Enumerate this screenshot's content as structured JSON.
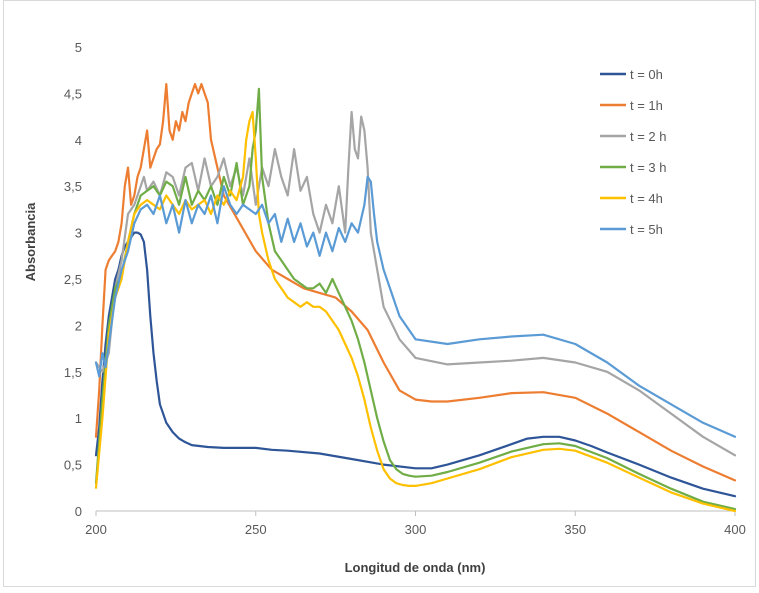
{
  "chart_data": {
    "type": "line",
    "title": "",
    "xlabel": "Longitud de onda (nm)",
    "ylabel": "Absorbancia",
    "xlim": [
      200,
      400
    ],
    "ylim": [
      0,
      5
    ],
    "x_ticks": [
      200,
      250,
      300,
      350,
      400
    ],
    "x_tick_labels": [
      "200",
      "250",
      "300",
      "350",
      "400"
    ],
    "y_ticks": [
      0,
      0.5,
      1,
      1.5,
      2,
      2.5,
      3,
      3.5,
      4,
      4.5,
      5
    ],
    "y_tick_labels": [
      "0",
      "0,5",
      "1",
      "1,5",
      "2",
      "2,5",
      "3",
      "3,5",
      "4",
      "4,5",
      "5"
    ],
    "grid": false,
    "legend_position": "right",
    "series": [
      {
        "name": "t = 0h",
        "color": "#2e5597",
        "x": [
          200,
          201,
          202,
          203,
          204,
          205,
          206,
          207,
          208,
          209,
          210,
          211,
          212,
          213,
          214,
          215,
          216,
          217,
          218,
          219,
          220,
          222,
          224,
          226,
          228,
          230,
          235,
          240,
          245,
          250,
          255,
          260,
          270,
          280,
          290,
          300,
          305,
          310,
          320,
          330,
          335,
          340,
          345,
          350,
          355,
          360,
          370,
          380,
          390,
          400
        ],
        "y": [
          0.6,
          0.9,
          1.4,
          1.8,
          2.1,
          2.3,
          2.5,
          2.6,
          2.75,
          2.85,
          2.9,
          2.95,
          3.0,
          3.0,
          2.98,
          2.9,
          2.6,
          2.1,
          1.7,
          1.4,
          1.15,
          0.95,
          0.85,
          0.78,
          0.74,
          0.71,
          0.69,
          0.68,
          0.68,
          0.68,
          0.66,
          0.65,
          0.62,
          0.56,
          0.5,
          0.46,
          0.46,
          0.5,
          0.6,
          0.72,
          0.78,
          0.8,
          0.8,
          0.76,
          0.7,
          0.63,
          0.5,
          0.36,
          0.24,
          0.16
        ]
      },
      {
        "name": "t = 1h",
        "color": "#ed7d31",
        "x": [
          200,
          201,
          202,
          203,
          204,
          205,
          206,
          207,
          208,
          209,
          210,
          211,
          212,
          213,
          214,
          215,
          216,
          217,
          218,
          219,
          220,
          221,
          222,
          223,
          224,
          225,
          226,
          227,
          228,
          229,
          230,
          231,
          232,
          233,
          234,
          235,
          236,
          240,
          245,
          250,
          255,
          260,
          265,
          270,
          275,
          280,
          285,
          290,
          295,
          300,
          305,
          310,
          320,
          330,
          340,
          350,
          360,
          370,
          380,
          390,
          400
        ],
        "y": [
          0.8,
          1.3,
          2.0,
          2.6,
          2.7,
          2.75,
          2.8,
          2.9,
          3.1,
          3.5,
          3.7,
          3.3,
          3.4,
          3.6,
          3.7,
          3.9,
          4.1,
          3.7,
          3.8,
          3.9,
          3.95,
          4.2,
          4.6,
          4.1,
          4.0,
          4.2,
          4.1,
          4.3,
          4.2,
          4.4,
          4.5,
          4.6,
          4.5,
          4.6,
          4.5,
          4.4,
          4.0,
          3.4,
          3.1,
          2.8,
          2.6,
          2.5,
          2.4,
          2.35,
          2.3,
          2.15,
          1.95,
          1.6,
          1.3,
          1.2,
          1.18,
          1.18,
          1.22,
          1.27,
          1.28,
          1.22,
          1.05,
          0.85,
          0.65,
          0.48,
          0.33
        ]
      },
      {
        "name": "t = 2 h",
        "color": "#a5a5a5",
        "x": [
          200,
          202,
          204,
          206,
          208,
          210,
          212,
          214,
          215,
          216,
          218,
          220,
          222,
          224,
          226,
          228,
          230,
          232,
          234,
          236,
          238,
          240,
          242,
          244,
          246,
          248,
          250,
          252,
          254,
          256,
          258,
          260,
          262,
          264,
          266,
          268,
          270,
          272,
          274,
          276,
          278,
          279,
          280,
          281,
          282,
          283,
          284,
          285,
          286,
          287,
          288,
          290,
          295,
          300,
          310,
          320,
          330,
          340,
          350,
          360,
          370,
          380,
          390,
          400
        ],
        "y": [
          1.6,
          1.5,
          1.7,
          2.4,
          2.7,
          3.2,
          3.3,
          3.5,
          3.6,
          3.45,
          3.55,
          3.4,
          3.65,
          3.6,
          3.4,
          3.7,
          3.75,
          3.45,
          3.8,
          3.5,
          3.6,
          3.8,
          3.5,
          3.7,
          3.4,
          3.8,
          3.3,
          3.7,
          3.5,
          3.9,
          3.6,
          3.4,
          3.9,
          3.45,
          3.6,
          3.2,
          3.0,
          3.3,
          3.1,
          3.5,
          3.0,
          3.7,
          4.3,
          3.9,
          3.8,
          4.25,
          4.1,
          3.7,
          3.0,
          2.8,
          2.6,
          2.2,
          1.85,
          1.65,
          1.58,
          1.6,
          1.62,
          1.65,
          1.6,
          1.5,
          1.3,
          1.05,
          0.8,
          0.6
        ]
      },
      {
        "name": "t = 3 h",
        "color": "#70ad47",
        "x": [
          200,
          202,
          204,
          206,
          208,
          210,
          212,
          214,
          216,
          218,
          220,
          222,
          224,
          226,
          228,
          230,
          232,
          234,
          236,
          238,
          240,
          242,
          244,
          246,
          248,
          249,
          250,
          251,
          252,
          254,
          256,
          258,
          260,
          262,
          264,
          266,
          268,
          270,
          272,
          274,
          276,
          278,
          280,
          282,
          284,
          286,
          288,
          290,
          292,
          294,
          296,
          298,
          300,
          305,
          310,
          320,
          330,
          340,
          345,
          350,
          360,
          370,
          380,
          390,
          400
        ],
        "y": [
          0.3,
          1.2,
          2.0,
          2.4,
          2.55,
          2.9,
          3.2,
          3.4,
          3.45,
          3.5,
          3.4,
          3.55,
          3.5,
          3.3,
          3.6,
          3.3,
          3.45,
          3.35,
          3.5,
          3.3,
          3.6,
          3.4,
          3.75,
          3.3,
          3.5,
          3.9,
          4.1,
          4.55,
          3.6,
          3.1,
          2.8,
          2.7,
          2.6,
          2.5,
          2.45,
          2.4,
          2.4,
          2.45,
          2.35,
          2.5,
          2.35,
          2.2,
          2.05,
          1.85,
          1.6,
          1.3,
          1.0,
          0.75,
          0.55,
          0.45,
          0.4,
          0.38,
          0.37,
          0.38,
          0.42,
          0.52,
          0.64,
          0.72,
          0.73,
          0.7,
          0.57,
          0.4,
          0.24,
          0.1,
          0.02
        ]
      },
      {
        "name": "t = 4h",
        "color": "#ffc000",
        "x": [
          200,
          202,
          204,
          206,
          208,
          210,
          212,
          214,
          216,
          218,
          220,
          222,
          224,
          226,
          228,
          230,
          232,
          234,
          236,
          238,
          240,
          242,
          244,
          246,
          247,
          248,
          249,
          250,
          251,
          252,
          254,
          256,
          258,
          260,
          262,
          264,
          266,
          268,
          270,
          272,
          274,
          276,
          278,
          280,
          282,
          284,
          286,
          288,
          290,
          292,
          294,
          296,
          298,
          300,
          305,
          310,
          320,
          330,
          340,
          345,
          350,
          360,
          370,
          380,
          390,
          400
        ],
        "y": [
          0.25,
          1.0,
          1.9,
          2.3,
          2.5,
          2.9,
          3.2,
          3.3,
          3.35,
          3.3,
          3.25,
          3.4,
          3.3,
          3.2,
          3.35,
          3.25,
          3.3,
          3.35,
          3.2,
          3.4,
          3.3,
          3.45,
          3.35,
          3.6,
          4.0,
          4.2,
          4.3,
          3.8,
          3.2,
          3.0,
          2.7,
          2.5,
          2.4,
          2.3,
          2.25,
          2.2,
          2.25,
          2.2,
          2.2,
          2.15,
          2.05,
          1.95,
          1.8,
          1.65,
          1.45,
          1.2,
          0.9,
          0.65,
          0.45,
          0.35,
          0.3,
          0.28,
          0.27,
          0.27,
          0.3,
          0.35,
          0.45,
          0.58,
          0.66,
          0.67,
          0.65,
          0.52,
          0.36,
          0.2,
          0.08,
          0.0
        ]
      },
      {
        "name": "t = 5h",
        "color": "#5b9bd5",
        "x": [
          200,
          201,
          202,
          203,
          204,
          206,
          208,
          210,
          212,
          214,
          216,
          218,
          220,
          222,
          224,
          226,
          228,
          230,
          232,
          234,
          236,
          238,
          240,
          242,
          244,
          246,
          248,
          250,
          252,
          254,
          256,
          258,
          260,
          262,
          264,
          266,
          268,
          270,
          272,
          274,
          276,
          278,
          280,
          282,
          284,
          285,
          286,
          287,
          288,
          290,
          295,
          300,
          310,
          320,
          330,
          340,
          350,
          360,
          370,
          380,
          390,
          400
        ],
        "y": [
          1.6,
          1.45,
          1.7,
          1.55,
          1.8,
          2.3,
          2.6,
          2.8,
          3.1,
          3.25,
          3.3,
          3.2,
          3.4,
          3.1,
          3.3,
          3.0,
          3.35,
          3.1,
          3.3,
          3.2,
          3.4,
          3.1,
          3.5,
          3.3,
          3.2,
          3.3,
          3.25,
          3.2,
          3.3,
          3.1,
          3.2,
          2.9,
          3.15,
          2.9,
          3.1,
          2.85,
          3.0,
          2.75,
          3.0,
          2.8,
          3.05,
          2.9,
          3.1,
          3.0,
          3.3,
          3.6,
          3.55,
          3.2,
          2.9,
          2.6,
          2.1,
          1.85,
          1.8,
          1.85,
          1.88,
          1.9,
          1.8,
          1.6,
          1.35,
          1.15,
          0.95,
          0.8
        ]
      }
    ]
  }
}
